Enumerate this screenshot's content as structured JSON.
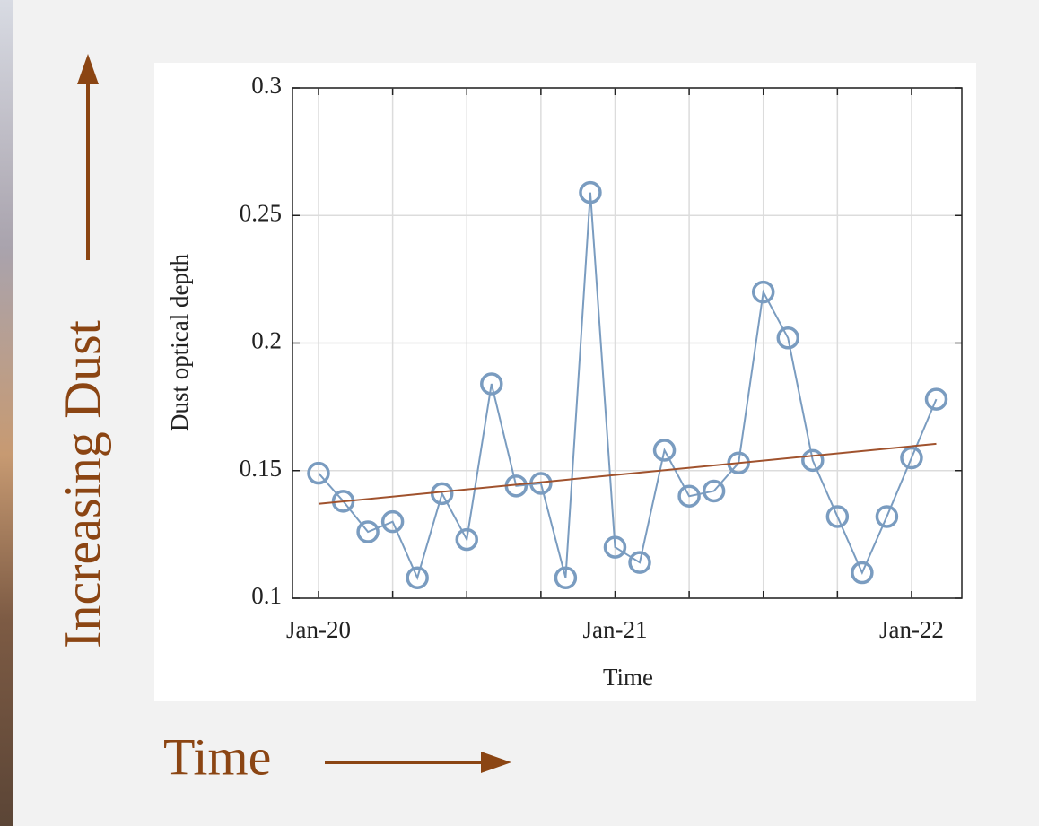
{
  "chart_data": {
    "type": "line",
    "x_label": "Time",
    "y_label": "Dust optical depth",
    "annotations": {
      "vertical": "Increasing Dust",
      "horizontal": "Time"
    },
    "categories": [
      "Jan-20",
      null,
      null,
      null,
      null,
      null,
      null,
      null,
      null,
      null,
      null,
      null,
      "Jan-21",
      null,
      null,
      null,
      null,
      null,
      null,
      null,
      null,
      null,
      null,
      null,
      "Jan-22",
      null
    ],
    "series": [
      {
        "color": "#7a9cc0",
        "marker": "circle",
        "values": [
          0.149,
          0.138,
          0.126,
          0.13,
          0.108,
          0.141,
          0.123,
          0.184,
          0.144,
          0.145,
          0.108,
          0.259,
          0.12,
          0.114,
          0.158,
          0.14,
          0.142,
          0.153,
          0.22,
          0.202,
          0.154,
          0.132,
          0.11,
          0.132,
          0.155,
          0.178
        ]
      }
    ],
    "trend": {
      "color": "#a0522d",
      "values": [
        0.137,
        0.1605
      ]
    },
    "ylim": [
      0.1,
      0.3
    ],
    "yticks": [
      0.1,
      0.15,
      0.2,
      0.25,
      0.3
    ],
    "grid": true
  }
}
